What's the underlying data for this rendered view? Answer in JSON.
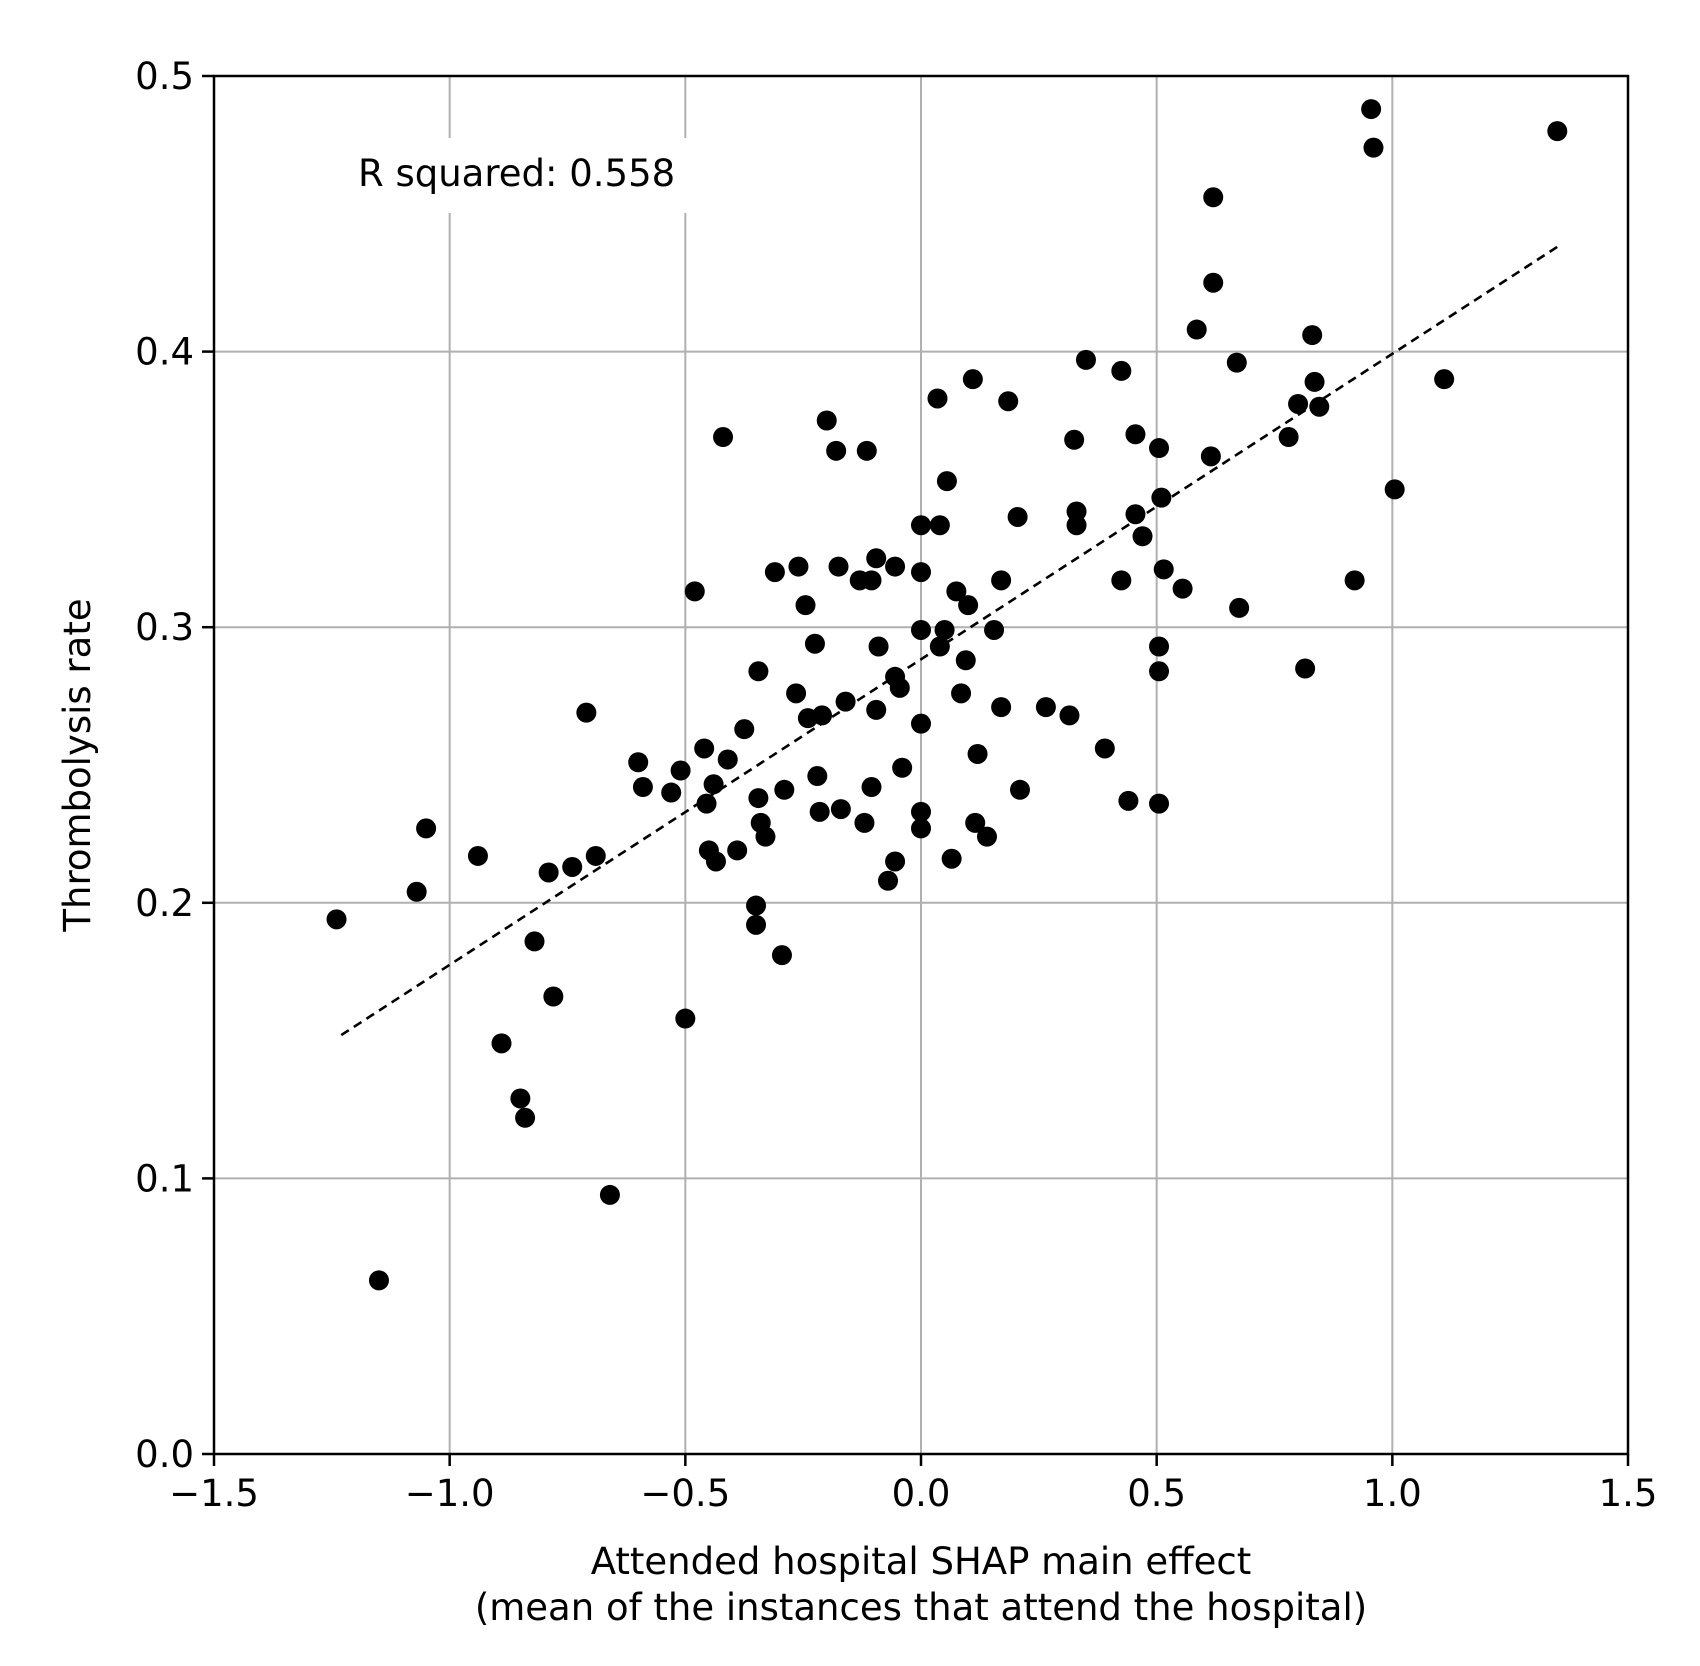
{
  "chart_data": {
    "type": "scatter",
    "title": "",
    "xlabel": "Attended hospital SHAP main effect",
    "xlabel_line2": "(mean of the instances that attend the hospital)",
    "ylabel": "Thrombolysis rate",
    "xlim": [
      -1.5,
      1.5
    ],
    "ylim": [
      0.0,
      0.5
    ],
    "xticks": [
      -1.5,
      -1.0,
      -0.5,
      0.0,
      0.5,
      1.0,
      1.5
    ],
    "xtick_labels": [
      "−1.5",
      "−1.0",
      "−0.5",
      "0.0",
      "0.5",
      "1.0",
      "1.5"
    ],
    "yticks": [
      0.0,
      0.1,
      0.2,
      0.3,
      0.4,
      0.5
    ],
    "ytick_labels": [
      "0.0",
      "0.1",
      "0.2",
      "0.3",
      "0.4",
      "0.5"
    ],
    "grid": true,
    "annotation": "R squared: 0.558",
    "fit_line": {
      "x": [
        -1.23,
        1.35
      ],
      "y": [
        0.152,
        0.438
      ],
      "style": "dashed"
    },
    "marker_color": "#000000",
    "grid_color": "#b0b0b0",
    "points": [
      [
        -1.24,
        0.194
      ],
      [
        -1.15,
        0.063
      ],
      [
        -1.07,
        0.204
      ],
      [
        -1.05,
        0.227
      ],
      [
        -0.94,
        0.217
      ],
      [
        -0.89,
        0.149
      ],
      [
        -0.85,
        0.129
      ],
      [
        -0.84,
        0.122
      ],
      [
        -0.82,
        0.186
      ],
      [
        -0.79,
        0.211
      ],
      [
        -0.78,
        0.166
      ],
      [
        -0.74,
        0.213
      ],
      [
        -0.71,
        0.269
      ],
      [
        -0.69,
        0.217
      ],
      [
        -0.66,
        0.094
      ],
      [
        -0.6,
        0.251
      ],
      [
        -0.59,
        0.242
      ],
      [
        -0.53,
        0.24
      ],
      [
        -0.51,
        0.248
      ],
      [
        -0.5,
        0.158
      ],
      [
        -0.48,
        0.313
      ],
      [
        -0.46,
        0.256
      ],
      [
        -0.455,
        0.236
      ],
      [
        -0.45,
        0.219
      ],
      [
        -0.44,
        0.243
      ],
      [
        -0.435,
        0.215
      ],
      [
        -0.42,
        0.369
      ],
      [
        -0.41,
        0.252
      ],
      [
        -0.39,
        0.219
      ],
      [
        -0.375,
        0.263
      ],
      [
        -0.35,
        0.199
      ],
      [
        -0.35,
        0.192
      ],
      [
        -0.345,
        0.284
      ],
      [
        -0.345,
        0.238
      ],
      [
        -0.34,
        0.229
      ],
      [
        -0.33,
        0.224
      ],
      [
        -0.31,
        0.32
      ],
      [
        -0.295,
        0.181
      ],
      [
        -0.29,
        0.241
      ],
      [
        -0.265,
        0.276
      ],
      [
        -0.26,
        0.322
      ],
      [
        -0.245,
        0.308
      ],
      [
        -0.24,
        0.267
      ],
      [
        -0.225,
        0.294
      ],
      [
        -0.22,
        0.246
      ],
      [
        -0.215,
        0.233
      ],
      [
        -0.21,
        0.268
      ],
      [
        -0.2,
        0.375
      ],
      [
        -0.18,
        0.364
      ],
      [
        -0.175,
        0.322
      ],
      [
        -0.17,
        0.234
      ],
      [
        -0.16,
        0.273
      ],
      [
        -0.13,
        0.317
      ],
      [
        -0.12,
        0.229
      ],
      [
        -0.115,
        0.364
      ],
      [
        -0.105,
        0.317
      ],
      [
        -0.105,
        0.242
      ],
      [
        -0.095,
        0.325
      ],
      [
        -0.095,
        0.27
      ],
      [
        -0.09,
        0.293
      ],
      [
        -0.07,
        0.208
      ],
      [
        -0.055,
        0.322
      ],
      [
        -0.055,
        0.215
      ],
      [
        -0.055,
        0.282
      ],
      [
        -0.045,
        0.278
      ],
      [
        -0.04,
        0.249
      ],
      [
        0.0,
        0.337
      ],
      [
        0.0,
        0.32
      ],
      [
        0.0,
        0.299
      ],
      [
        0.0,
        0.265
      ],
      [
        0.0,
        0.233
      ],
      [
        0.0,
        0.227
      ],
      [
        0.035,
        0.383
      ],
      [
        0.04,
        0.337
      ],
      [
        0.04,
        0.293
      ],
      [
        0.05,
        0.299
      ],
      [
        0.055,
        0.353
      ],
      [
        0.065,
        0.216
      ],
      [
        0.075,
        0.313
      ],
      [
        0.085,
        0.276
      ],
      [
        0.095,
        0.288
      ],
      [
        0.1,
        0.308
      ],
      [
        0.11,
        0.39
      ],
      [
        0.115,
        0.229
      ],
      [
        0.12,
        0.254
      ],
      [
        0.14,
        0.224
      ],
      [
        0.155,
        0.299
      ],
      [
        0.17,
        0.317
      ],
      [
        0.17,
        0.271
      ],
      [
        0.185,
        0.382
      ],
      [
        0.205,
        0.34
      ],
      [
        0.21,
        0.241
      ],
      [
        0.265,
        0.271
      ],
      [
        0.315,
        0.268
      ],
      [
        0.325,
        0.368
      ],
      [
        0.33,
        0.342
      ],
      [
        0.33,
        0.337
      ],
      [
        0.35,
        0.397
      ],
      [
        0.39,
        0.256
      ],
      [
        0.425,
        0.393
      ],
      [
        0.425,
        0.317
      ],
      [
        0.44,
        0.237
      ],
      [
        0.455,
        0.37
      ],
      [
        0.455,
        0.341
      ],
      [
        0.47,
        0.333
      ],
      [
        0.505,
        0.365
      ],
      [
        0.505,
        0.293
      ],
      [
        0.505,
        0.284
      ],
      [
        0.505,
        0.236
      ],
      [
        0.51,
        0.347
      ],
      [
        0.515,
        0.321
      ],
      [
        0.555,
        0.314
      ],
      [
        0.585,
        0.408
      ],
      [
        0.615,
        0.362
      ],
      [
        0.62,
        0.456
      ],
      [
        0.62,
        0.425
      ],
      [
        0.67,
        0.396
      ],
      [
        0.675,
        0.307
      ],
      [
        0.78,
        0.369
      ],
      [
        0.8,
        0.381
      ],
      [
        0.815,
        0.285
      ],
      [
        0.83,
        0.406
      ],
      [
        0.835,
        0.389
      ],
      [
        0.845,
        0.38
      ],
      [
        0.92,
        0.317
      ],
      [
        0.955,
        0.488
      ],
      [
        0.96,
        0.474
      ],
      [
        1.005,
        0.35
      ],
      [
        1.11,
        0.39
      ],
      [
        1.35,
        0.48
      ]
    ]
  }
}
